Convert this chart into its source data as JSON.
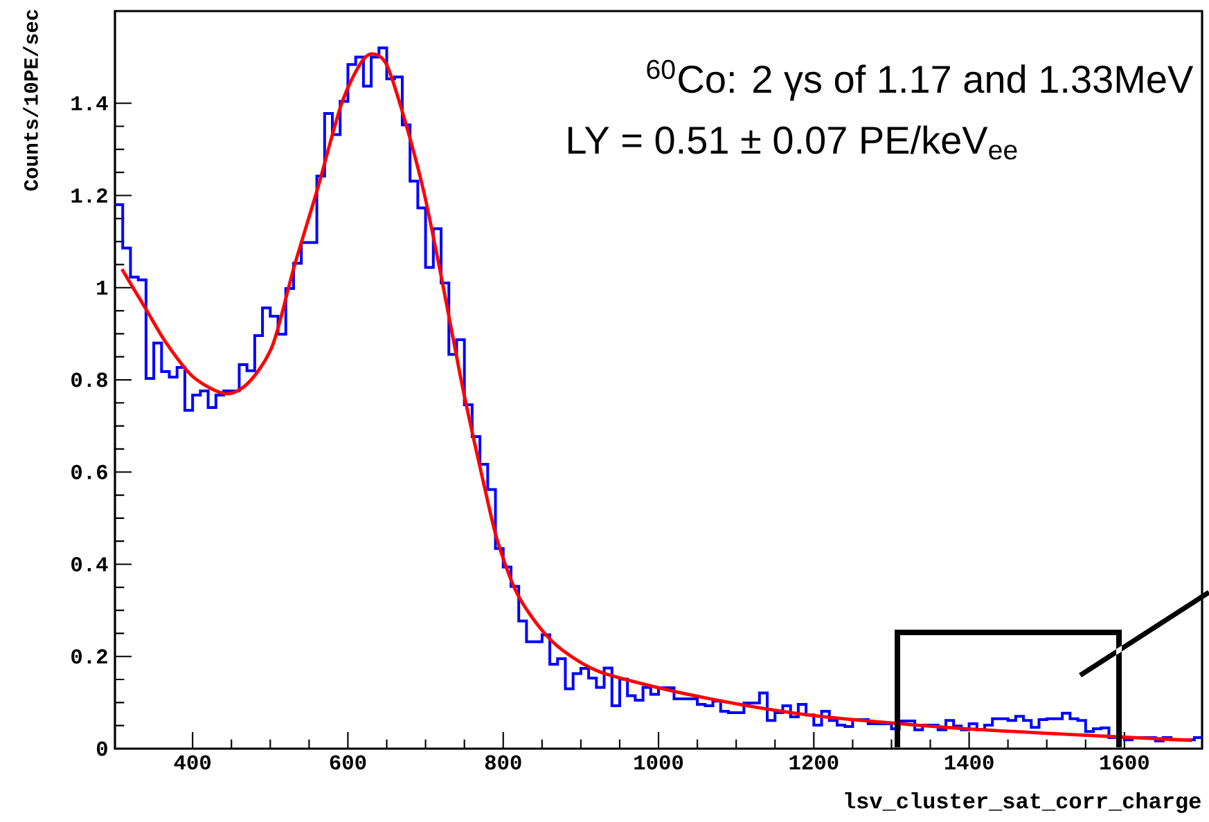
{
  "chart_data": {
    "type": "histogram",
    "xlabel": "lsv_cluster_sat_corr_charge",
    "ylabel": "Counts/10PE/sec",
    "annotations": [
      "$^{60}$Co: 2 γs of 1.17 and 1.33MeV",
      "LY = 0.51 ± 0.07 PE/keV$_{ee}$"
    ],
    "xlim": [
      300,
      1700
    ],
    "ylim": [
      0,
      1.6
    ],
    "xticks": [
      400,
      600,
      800,
      1000,
      1200,
      1400,
      1600
    ],
    "yticks": [
      0,
      0.2,
      0.4,
      0.6,
      0.8,
      1,
      1.2,
      1.4
    ],
    "color": "#0000ff",
    "bins": [
      300,
      310,
      320,
      330,
      340,
      350,
      360,
      370,
      380,
      390,
      400,
      410,
      420,
      430,
      440,
      450,
      460,
      470,
      480,
      490,
      500,
      510,
      520,
      530,
      540,
      550,
      560,
      570,
      580,
      590,
      600,
      610,
      620,
      630,
      640,
      650,
      660,
      670,
      680,
      690,
      700,
      710,
      720,
      730,
      740,
      750,
      760,
      770,
      780,
      790,
      800,
      810,
      820,
      830,
      840,
      850,
      860,
      870,
      880,
      890,
      900,
      910,
      920,
      930,
      940,
      950,
      960,
      970,
      980,
      990,
      1000,
      1010,
      1020,
      1030,
      1040,
      1050,
      1060,
      1070,
      1080,
      1090,
      1100,
      1110,
      1120,
      1130,
      1140,
      1150,
      1160,
      1170,
      1180,
      1190,
      1200,
      1210,
      1220,
      1230,
      1240,
      1250,
      1260,
      1270,
      1280,
      1290,
      1300,
      1310,
      1320,
      1330,
      1340,
      1350,
      1360,
      1370,
      1380,
      1390,
      1400,
      1410,
      1420,
      1430,
      1440,
      1450,
      1460,
      1470,
      1480,
      1490,
      1500,
      1510,
      1520,
      1530,
      1540,
      1550,
      1560,
      1570,
      1580,
      1590,
      1600,
      1610,
      1620,
      1630,
      1640,
      1650,
      1660,
      1670,
      1680,
      1690,
      1700
    ],
    "values": [
      1.18,
      1.086,
      1.023,
      1.017,
      0.803,
      0.88,
      0.818,
      0.806,
      0.827,
      0.734,
      0.767,
      0.776,
      0.74,
      0.767,
      0.776,
      0.776,
      0.833,
      0.82,
      0.896,
      0.956,
      0.938,
      0.899,
      0.998,
      1.053,
      1.098,
      1.098,
      1.242,
      1.378,
      1.332,
      1.404,
      1.484,
      1.5,
      1.437,
      1.5,
      1.52,
      1.453,
      1.457,
      1.353,
      1.231,
      1.173,
      1.044,
      1.128,
      1.01,
      0.855,
      0.887,
      0.746,
      0.677,
      0.617,
      0.562,
      0.434,
      0.394,
      0.352,
      0.277,
      0.232,
      0.232,
      0.247,
      0.183,
      0.195,
      0.13,
      0.163,
      0.174,
      0.153,
      0.133,
      0.175,
      0.093,
      0.151,
      0.115,
      0.105,
      0.133,
      0.118,
      0.132,
      0.132,
      0.108,
      0.108,
      0.108,
      0.096,
      0.093,
      0.103,
      0.081,
      0.078,
      0.078,
      0.099,
      0.099,
      0.121,
      0.061,
      0.078,
      0.093,
      0.069,
      0.096,
      0.073,
      0.051,
      0.081,
      0.061,
      0.051,
      0.048,
      0.063,
      0.063,
      0.054,
      0.054,
      0.054,
      0.043,
      0.06,
      0.06,
      0.041,
      0.051,
      0.051,
      0.041,
      0.061,
      0.049,
      0.041,
      0.054,
      0.041,
      0.051,
      0.065,
      0.065,
      0.061,
      0.07,
      0.061,
      0.046,
      0.063,
      0.065,
      0.065,
      0.077,
      0.065,
      0.061,
      0.037,
      0.043,
      0.045,
      0.024,
      0.024,
      0.019,
      0.024,
      0.024,
      0.024,
      0.017,
      0.024,
      0.019,
      0.019,
      0.019,
      0.024
    ],
    "series": [
      {
        "type": "line",
        "color": "#ff0000",
        "x": [
          309,
          339,
          366,
          401,
          442,
          472,
          503,
          531,
          561,
          591,
          615,
          631,
          650,
          673,
          698,
          721,
          744,
          757,
          775,
          792,
          816,
          846,
          876,
          922,
          993,
          1082,
          1171,
          1251,
          1397,
          1575,
          1687
        ],
        "values": [
          1.04,
          0.956,
          0.88,
          0.806,
          0.77,
          0.794,
          0.875,
          1.047,
          1.215,
          1.395,
          1.483,
          1.507,
          1.483,
          1.365,
          1.206,
          1.017,
          0.815,
          0.71,
          0.574,
          0.454,
          0.343,
          0.265,
          0.214,
          0.168,
          0.135,
          0.103,
          0.078,
          0.063,
          0.043,
          0.027,
          0.018
        ]
      }
    ]
  }
}
